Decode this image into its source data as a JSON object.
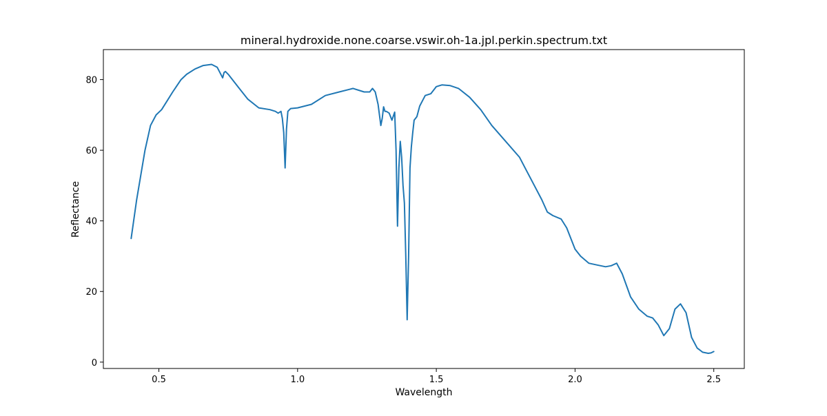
{
  "chart_data": {
    "type": "line",
    "title": "mineral.hydroxide.none.coarse.vswir.oh-1a.jpl.perkin.spectrum.txt",
    "xlabel": "Wavelength",
    "ylabel": "Reflectance",
    "xlim": [
      0.3,
      2.61
    ],
    "ylim": [
      -1.8,
      88.5
    ],
    "xticks": [
      0.5,
      1.0,
      1.5,
      2.0,
      2.5
    ],
    "xtick_labels": [
      "0.5",
      "1.0",
      "1.5",
      "2.0",
      "2.5"
    ],
    "yticks": [
      0,
      20,
      40,
      60,
      80
    ],
    "ytick_labels": [
      "0",
      "20",
      "40",
      "60",
      "80"
    ],
    "grid": false,
    "legend": "none",
    "line_color": "#1f77b4",
    "series": [
      {
        "x": [
          0.4,
          0.42,
          0.45,
          0.47,
          0.49,
          0.51,
          0.53,
          0.55,
          0.58,
          0.6,
          0.63,
          0.66,
          0.69,
          0.71,
          0.72,
          0.73,
          0.735,
          0.74,
          0.75,
          0.78,
          0.82,
          0.86,
          0.9,
          0.92,
          0.93,
          0.94,
          0.945,
          0.95,
          0.955,
          0.96,
          0.965,
          0.975,
          1.0,
          1.05,
          1.1,
          1.15,
          1.2,
          1.22,
          1.24,
          1.26,
          1.27,
          1.28,
          1.29,
          1.3,
          1.305,
          1.31,
          1.315,
          1.32,
          1.33,
          1.34,
          1.35,
          1.355,
          1.36,
          1.365,
          1.37,
          1.375,
          1.38,
          1.385,
          1.39,
          1.395,
          1.4,
          1.405,
          1.41,
          1.415,
          1.42,
          1.43,
          1.44,
          1.45,
          1.46,
          1.48,
          1.5,
          1.52,
          1.55,
          1.58,
          1.62,
          1.66,
          1.7,
          1.75,
          1.8,
          1.82,
          1.85,
          1.88,
          1.9,
          1.92,
          1.95,
          1.97,
          2.0,
          2.02,
          2.05,
          2.08,
          2.11,
          2.13,
          2.15,
          2.17,
          2.2,
          2.23,
          2.26,
          2.28,
          2.3,
          2.32,
          2.34,
          2.36,
          2.38,
          2.4,
          2.42,
          2.44,
          2.46,
          2.48,
          2.49,
          2.5
        ],
        "y": [
          35.0,
          46.0,
          60.0,
          67.0,
          70.0,
          71.5,
          74.0,
          76.5,
          80.0,
          81.5,
          83.0,
          84.0,
          84.3,
          83.5,
          82.0,
          80.5,
          82.0,
          82.3,
          81.5,
          78.5,
          74.5,
          72.0,
          71.5,
          71.0,
          70.5,
          71.0,
          69.0,
          65.0,
          55.0,
          66.0,
          71.0,
          71.8,
          72.0,
          73.0,
          75.5,
          76.5,
          77.5,
          77.0,
          76.5,
          76.5,
          77.5,
          76.5,
          73.0,
          67.0,
          69.0,
          72.3,
          71.0,
          71.0,
          70.5,
          68.5,
          70.8,
          60.0,
          38.5,
          55.0,
          62.5,
          58.0,
          50.0,
          45.0,
          30.0,
          12.0,
          30.0,
          55.0,
          61.0,
          65.0,
          68.5,
          69.5,
          72.5,
          74.0,
          75.5,
          76.0,
          78.0,
          78.5,
          78.3,
          77.5,
          75.0,
          71.5,
          67.0,
          62.5,
          58.0,
          55.0,
          50.5,
          46.0,
          42.5,
          41.5,
          40.5,
          38.0,
          32.0,
          30.0,
          28.0,
          27.5,
          27.0,
          27.3,
          28.0,
          25.0,
          18.5,
          15.0,
          13.0,
          12.5,
          10.5,
          7.5,
          9.5,
          15.0,
          16.5,
          14.0,
          7.0,
          4.0,
          2.8,
          2.5,
          2.6,
          3.0
        ]
      }
    ]
  }
}
